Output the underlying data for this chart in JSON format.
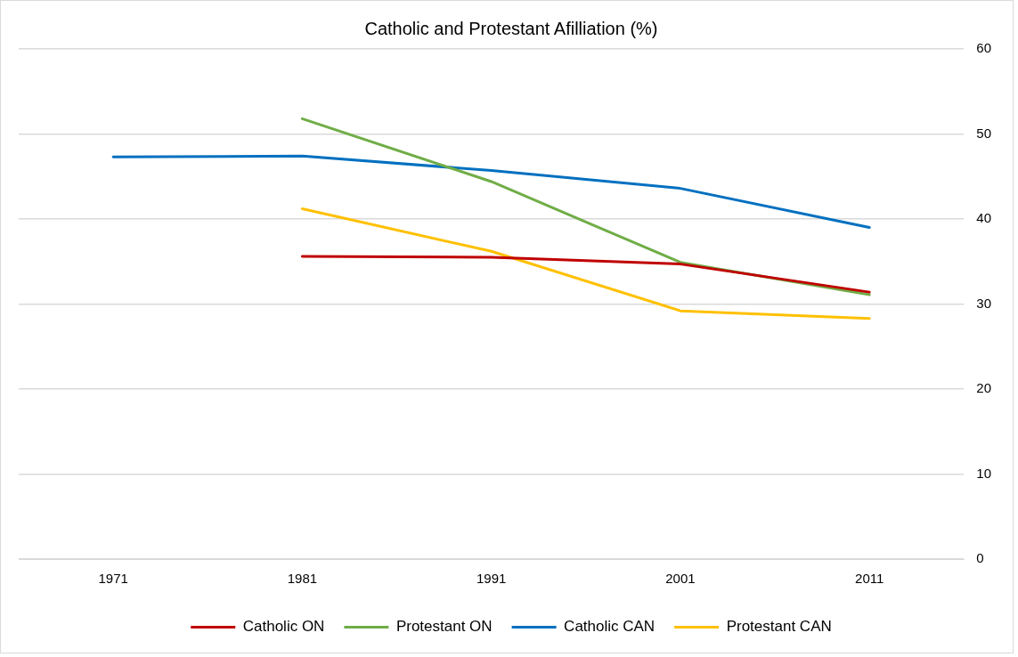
{
  "chart_data": {
    "type": "line",
    "title": "Catholic and Protestant Afilliation (%)",
    "categories": [
      "1971",
      "1981",
      "1991",
      "2001",
      "2011"
    ],
    "series": [
      {
        "name": "Catholic ON",
        "color": "#c00000",
        "values": [
          null,
          35.6,
          35.5,
          34.7,
          31.4
        ]
      },
      {
        "name": "Protestant ON",
        "color": "#70ad47",
        "values": [
          null,
          51.8,
          44.4,
          34.9,
          31.1
        ]
      },
      {
        "name": "Catholic CAN",
        "color": "#0070c0",
        "values": [
          47.3,
          47.4,
          45.7,
          43.6,
          39.0
        ]
      },
      {
        "name": "Protestant CAN",
        "color": "#ffc000",
        "values": [
          null,
          41.2,
          36.2,
          29.2,
          28.3
        ]
      }
    ],
    "ylim": [
      0,
      60
    ],
    "yticks": [
      0,
      10,
      20,
      30,
      40,
      50,
      60
    ],
    "grid": "y",
    "legend": "bottom",
    "marker": "none",
    "line_style": "solid"
  }
}
